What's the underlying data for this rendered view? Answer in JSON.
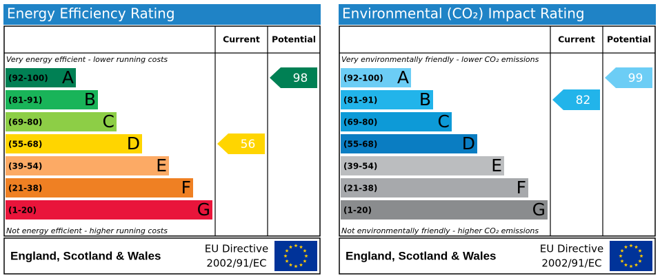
{
  "panels": [
    {
      "title": "Energy Efficiency Rating",
      "headers": {
        "current": "Current",
        "potential": "Potential"
      },
      "top_note": "Very energy efficient - lower running costs",
      "bottom_note": "Not energy efficient - higher running costs",
      "bands": [
        {
          "range": "(92-100)",
          "letter": "A",
          "color": "#008054"
        },
        {
          "range": "(81-91)",
          "letter": "B",
          "color": "#19b459"
        },
        {
          "range": "(69-80)",
          "letter": "C",
          "color": "#8dce46"
        },
        {
          "range": "(55-68)",
          "letter": "D",
          "color": "#ffd500"
        },
        {
          "range": "(39-54)",
          "letter": "E",
          "color": "#fcaa65"
        },
        {
          "range": "(21-38)",
          "letter": "F",
          "color": "#ef8023"
        },
        {
          "range": "(1-20)",
          "letter": "G",
          "color": "#e9153b"
        }
      ],
      "current": 56,
      "potential": 98,
      "footer": {
        "region": "England, Scotland & Wales",
        "directive": "EU Directive",
        "code": "2002/91/EC"
      }
    },
    {
      "title": "Environmental (CO₂) Impact Rating",
      "headers": {
        "current": "Current",
        "potential": "Potential"
      },
      "top_note": "Very environmentally friendly - lower CO₂ emissions",
      "bottom_note": "Not environmentally friendly - higher CO₂ emissions",
      "bands": [
        {
          "range": "(92-100)",
          "letter": "A",
          "color": "#6ccdf5"
        },
        {
          "range": "(81-91)",
          "letter": "B",
          "color": "#22b4ea"
        },
        {
          "range": "(69-80)",
          "letter": "C",
          "color": "#0d9ad7"
        },
        {
          "range": "(55-68)",
          "letter": "D",
          "color": "#0a7dc2"
        },
        {
          "range": "(39-54)",
          "letter": "E",
          "color": "#bbbdbf"
        },
        {
          "range": "(21-38)",
          "letter": "F",
          "color": "#a7a9ac"
        },
        {
          "range": "(1-20)",
          "letter": "G",
          "color": "#8a8c8e"
        }
      ],
      "current": 82,
      "potential": 99,
      "footer": {
        "region": "England, Scotland & Wales",
        "directive": "EU Directive",
        "code": "2002/91/EC"
      }
    }
  ]
}
